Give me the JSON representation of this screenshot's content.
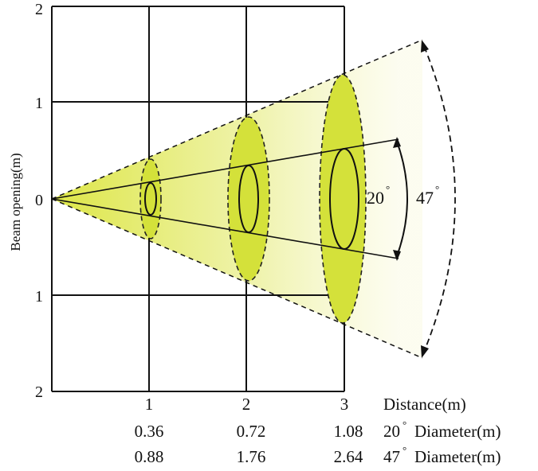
{
  "diagram": {
    "y_axis_label": "Beam opening(m)",
    "y_ticks": [
      "2",
      "1",
      "0",
      "1",
      "2"
    ],
    "x_ticks": [
      "1",
      "2",
      "3"
    ],
    "distance_label": "Distance(m)",
    "rows": [
      {
        "values": [
          "0.36",
          "0.72",
          "1.08"
        ],
        "angle": "20",
        "label": "Diameter(m)"
      },
      {
        "values": [
          "0.88",
          "1.76",
          "2.64"
        ],
        "angle": "47",
        "label": "Diameter(m)"
      }
    ],
    "beam_angles": {
      "inner": "20",
      "outer": "47"
    },
    "degree_mark": "°",
    "colors": {
      "beam_fill": "#e8ee7a",
      "ellipse_fill": "#d4e13a",
      "grid": "#111111"
    }
  }
}
